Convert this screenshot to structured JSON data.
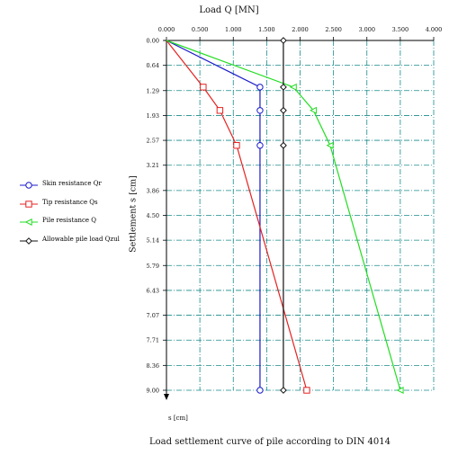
{
  "header": {
    "title": "Load Q [MN]"
  },
  "footer": {
    "caption": "Load settlement curve of pile according to DIN 4014",
    "s_unit": "s [cm]"
  },
  "colors": {
    "skin": "#1a1acc",
    "tip": "#e52222",
    "pile": "#22dd22",
    "allowable": "#111111",
    "grid": "#1a8a8a"
  },
  "chart_data": {
    "type": "line",
    "title": "Load Q [MN]",
    "xlabel": "Load Q [MN]",
    "ylabel": "Settlement s [cm]",
    "x_axis_position": "top",
    "y_inverted": true,
    "xlim": [
      0,
      4.0
    ],
    "ylim": [
      0,
      9.0
    ],
    "x_ticks": [
      "0.000",
      "0.500",
      "1.000",
      "1.500",
      "2.000",
      "2.500",
      "3.000",
      "3.500",
      "4.000"
    ],
    "x_tick_values": [
      0,
      0.5,
      1.0,
      1.5,
      2.0,
      2.5,
      3.0,
      3.5,
      4.0
    ],
    "y_ticks": [
      "0.00",
      "0.64",
      "1.29",
      "1.93",
      "2.57",
      "3.21",
      "3.86",
      "4.50",
      "5.14",
      "5.79",
      "6.43",
      "7.07",
      "7.71",
      "8.36",
      "9.00"
    ],
    "y_tick_values": [
      0,
      0.64,
      1.29,
      1.93,
      2.57,
      3.21,
      3.86,
      4.5,
      5.14,
      5.79,
      6.43,
      7.07,
      7.71,
      8.36,
      9.0
    ],
    "grid": true,
    "legend_position": "left",
    "series": [
      {
        "name": "Skin resistance Qr",
        "color_key": "skin",
        "marker": "circle",
        "points": [
          [
            0,
            0
          ],
          [
            1.4,
            1.2
          ],
          [
            1.4,
            1.8
          ],
          [
            1.4,
            2.7
          ],
          [
            1.4,
            9.0
          ]
        ]
      },
      {
        "name": "Tip resistance Qs",
        "color_key": "tip",
        "marker": "square",
        "points": [
          [
            0,
            0
          ],
          [
            0.55,
            1.2
          ],
          [
            0.8,
            1.8
          ],
          [
            1.05,
            2.7
          ],
          [
            2.1,
            9.0
          ]
        ]
      },
      {
        "name": "Pile resistance Q",
        "color_key": "pile",
        "marker": "triangle",
        "points": [
          [
            0,
            0
          ],
          [
            1.9,
            1.2
          ],
          [
            2.2,
            1.8
          ],
          [
            2.45,
            2.7
          ],
          [
            3.5,
            9.0
          ]
        ]
      },
      {
        "name": "Allowable pile load Qzul",
        "color_key": "allowable",
        "marker": "diamond",
        "points": [
          [
            1.75,
            0
          ],
          [
            1.75,
            1.2
          ],
          [
            1.75,
            1.8
          ],
          [
            1.75,
            2.7
          ],
          [
            1.75,
            9.0
          ]
        ]
      }
    ]
  }
}
